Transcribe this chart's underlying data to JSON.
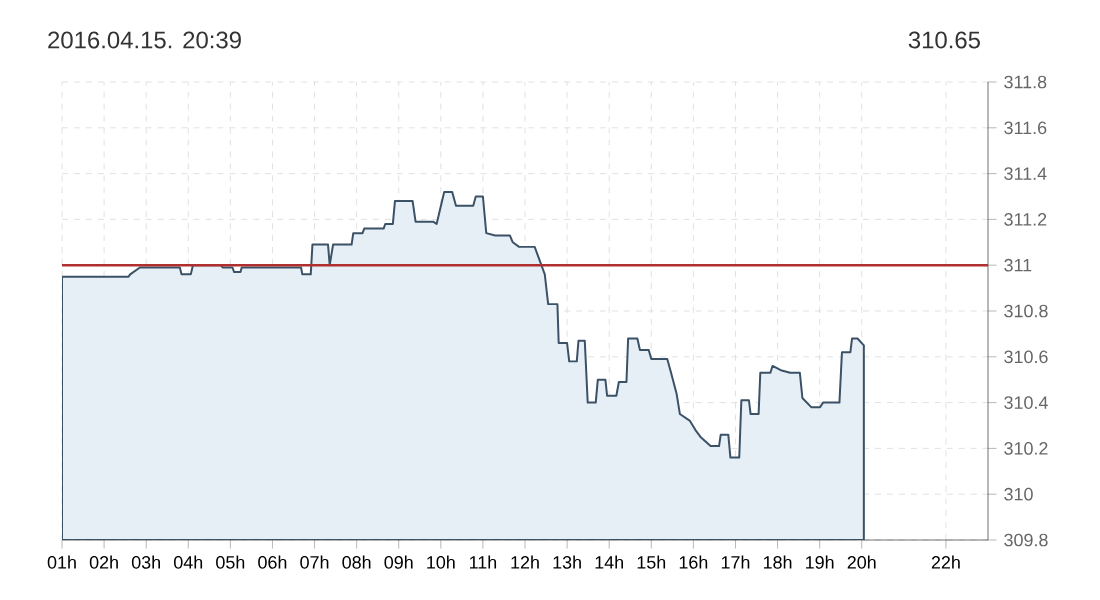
{
  "chart_data": {
    "type": "area",
    "title": "2016.04.15. 20:39",
    "annotations": [
      "310.65"
    ],
    "x": [
      1.0,
      2.58,
      2.62,
      2.85,
      3.8,
      3.84,
      4.06,
      4.11,
      4.77,
      4.82,
      5.05,
      5.09,
      5.24,
      5.27,
      6.68,
      6.71,
      6.91,
      6.95,
      7.32,
      7.36,
      7.44,
      7.88,
      7.92,
      8.14,
      8.18,
      8.64,
      8.68,
      8.86,
      8.91,
      9.33,
      9.4,
      9.82,
      9.9,
      10.08,
      10.27,
      10.36,
      10.77,
      10.83,
      11.0,
      11.08,
      11.29,
      11.64,
      11.71,
      11.86,
      12.23,
      12.47,
      12.55,
      12.77,
      12.8,
      13.0,
      13.05,
      13.23,
      13.27,
      13.42,
      13.49,
      13.68,
      13.73,
      13.91,
      13.95,
      14.17,
      14.23,
      14.41,
      14.45,
      14.67,
      14.73,
      14.94,
      15.0,
      15.38,
      15.47,
      15.6,
      15.68,
      15.92,
      16.05,
      16.17,
      16.41,
      16.61,
      16.65,
      16.83,
      16.88,
      17.09,
      17.14,
      17.32,
      17.36,
      17.55,
      17.59,
      17.83,
      17.88,
      18.1,
      18.3,
      18.53,
      18.59,
      18.8,
      19.01,
      19.08,
      19.47,
      19.53,
      19.73,
      19.77,
      19.9,
      20.05
    ],
    "series": [
      {
        "color": "#e6eef6",
        "values": [
          310.95,
          310.95,
          310.96,
          310.99,
          310.99,
          310.96,
          310.96,
          311.0,
          311.0,
          310.99,
          310.99,
          310.97,
          310.97,
          310.99,
          310.99,
          310.96,
          310.96,
          311.09,
          311.09,
          311.0,
          311.09,
          311.09,
          311.14,
          311.14,
          311.16,
          311.16,
          311.18,
          311.18,
          311.28,
          311.28,
          311.19,
          311.19,
          311.18,
          311.32,
          311.32,
          311.26,
          311.26,
          311.3,
          311.3,
          311.14,
          311.13,
          311.13,
          311.1,
          311.08,
          311.08,
          310.96,
          310.83,
          310.83,
          310.66,
          310.66,
          310.58,
          310.58,
          310.67,
          310.67,
          310.4,
          310.4,
          310.5,
          310.5,
          310.43,
          310.43,
          310.49,
          310.49,
          310.68,
          310.68,
          310.63,
          310.63,
          310.59,
          310.59,
          310.53,
          310.44,
          310.35,
          310.32,
          310.28,
          310.25,
          310.21,
          310.21,
          310.26,
          310.26,
          310.16,
          310.16,
          310.41,
          310.41,
          310.35,
          310.35,
          310.53,
          310.53,
          310.56,
          310.54,
          310.53,
          310.53,
          310.42,
          310.38,
          310.38,
          310.4,
          310.4,
          310.62,
          310.62,
          310.68,
          310.68,
          310.65
        ]
      }
    ],
    "xlim": [
      1,
      23
    ],
    "xticks": [
      {
        "value": 1,
        "label": "01h"
      },
      {
        "value": 2,
        "label": "02h"
      },
      {
        "value": 3,
        "label": "03h"
      },
      {
        "value": 4,
        "label": "04h"
      },
      {
        "value": 5,
        "label": "05h"
      },
      {
        "value": 6,
        "label": "06h"
      },
      {
        "value": 7,
        "label": "07h"
      },
      {
        "value": 8,
        "label": "08h"
      },
      {
        "value": 9,
        "label": "09h"
      },
      {
        "value": 10,
        "label": "10h"
      },
      {
        "value": 11,
        "label": "11h"
      },
      {
        "value": 12,
        "label": "12h"
      },
      {
        "value": 13,
        "label": "13h"
      },
      {
        "value": 14,
        "label": "14h"
      },
      {
        "value": 15,
        "label": "15h"
      },
      {
        "value": 16,
        "label": "16h"
      },
      {
        "value": 17,
        "label": "17h"
      },
      {
        "value": 18,
        "label": "18h"
      },
      {
        "value": 19,
        "label": "19h"
      },
      {
        "value": 20,
        "label": "20h"
      },
      {
        "value": 22,
        "label": "22h"
      }
    ],
    "ylim": [
      309.8,
      311.8
    ],
    "yticks": [
      309.8,
      310,
      310.2,
      310.4,
      310.6,
      310.8,
      311,
      311.2,
      311.4,
      311.6,
      311.8
    ],
    "ref_lines": [
      {
        "axis": "y",
        "value": 311,
        "color": "#b03030"
      }
    ],
    "grid": true
  }
}
